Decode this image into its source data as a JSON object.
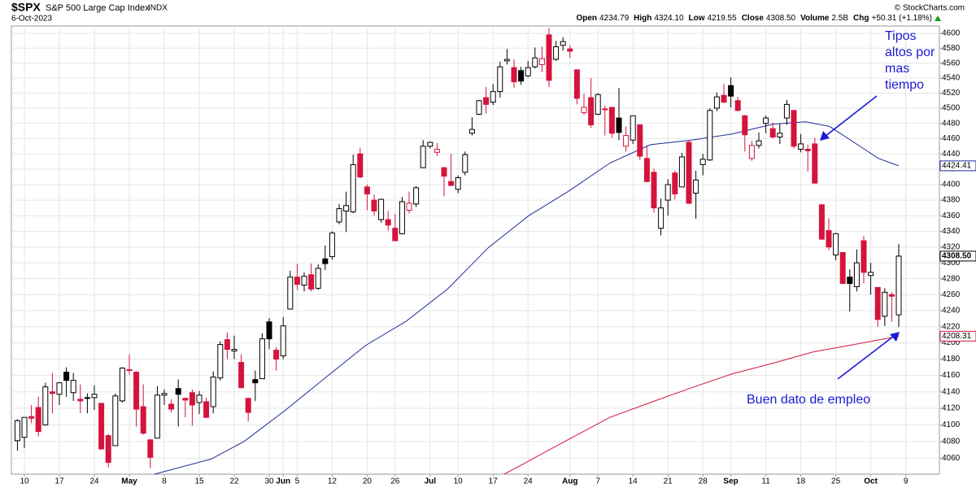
{
  "chart_data": {
    "type": "candlestick",
    "symbol": "$SPX",
    "name": "S&P 500 Large Cap Index",
    "exchange": "INDX",
    "date": "6-Oct-2023",
    "copyright": "© StockCharts.com",
    "stats": [
      {
        "label": "Open",
        "value": "4234.79"
      },
      {
        "label": "High",
        "value": "4324.10"
      },
      {
        "label": "Low",
        "value": "4219.55"
      },
      {
        "label": "Close",
        "value": "4308.50"
      },
      {
        "label": "Volume",
        "value": "2.5B"
      },
      {
        "label": "Chg",
        "value": "+50.31 (+1.18%)"
      }
    ],
    "log_scale": true,
    "grid": true,
    "up_color": "#000000",
    "down_color": "#d4143c",
    "open": [
      4081,
      4085,
      4110,
      4121,
      4100,
      4140,
      4137,
      4164,
      4139,
      4131,
      4132,
      4133,
      4126,
      4087,
      4075,
      4129,
      4166,
      4164,
      4122,
      4082,
      4084,
      4136,
      4125,
      4144,
      4132,
      4139,
      4127,
      4128,
      4122,
      4157,
      4204,
      4190,
      4176,
      4132,
      4155,
      4156,
      4226,
      4191,
      4184,
      4242,
      4282,
      4272,
      4285,
      4268,
      4305,
      4308,
      4352,
      4366,
      4365,
      4440,
      4397,
      4380,
      4355,
      4355,
      4344,
      4337,
      4367,
      4375,
      4422,
      4450,
      4442,
      4422,
      4404,
      4394,
      4416,
      4467,
      4492,
      4514,
      4508,
      4522,
      4563,
      4554,
      4550,
      4543,
      4555,
      4558,
      4598,
      4565,
      4584,
      4579,
      4551,
      4494,
      4514,
      4492,
      4498,
      4501,
      4487,
      4450,
      4458,
      4478,
      4434,
      4416,
      4344,
      4380,
      4415,
      4397,
      4455,
      4389,
      4426,
      4432,
      4500,
      4517,
      4530,
      4510,
      4490,
      4434,
      4451,
      4480,
      4473,
      4462,
      4487,
      4497,
      4446,
      4446,
      4453,
      4374,
      4341,
      4310,
      4313,
      4282,
      4270,
      4328,
      4284,
      4269,
      4233,
      4260,
      4234.79
    ],
    "high": [
      4107,
      4109,
      4124,
      4134,
      4151,
      4163,
      4152,
      4170,
      4163,
      4149,
      4138,
      4148,
      4126,
      4089,
      4138,
      4170,
      4186,
      4165,
      4149,
      4083,
      4147,
      4143,
      4131,
      4155,
      4133,
      4143,
      4141,
      4133,
      4165,
      4202,
      4213,
      4209,
      4186,
      4133,
      4166,
      4212,
      4231,
      4195,
      4232,
      4290,
      4299,
      4288,
      4299,
      4298,
      4322,
      4340,
      4375,
      4391,
      4439,
      4448,
      4400,
      4387,
      4382,
      4366,
      4362,
      4384,
      4391,
      4398,
      4458,
      4456,
      4454,
      4423,
      4440,
      4412,
      4443,
      4488,
      4511,
      4528,
      4532,
      4562,
      4579,
      4565,
      4555,
      4563,
      4581,
      4582,
      4607,
      4590,
      4595,
      4584,
      4551,
      4519,
      4540,
      4520,
      4503,
      4502,
      4527,
      4476,
      4490,
      4479,
      4450,
      4421,
      4382,
      4407,
      4418,
      4441,
      4458,
      4418,
      4440,
      4500,
      4521,
      4532,
      4541,
      4515,
      4491,
      4457,
      4468,
      4490,
      4481,
      4479,
      4511,
      4497,
      4466,
      4452,
      4461,
      4375,
      4357,
      4338,
      4314,
      4292,
      4317,
      4334,
      4300,
      4269,
      4268,
      4263,
      4324.1
    ],
    "low": [
      4069,
      4072,
      4102,
      4086,
      4099,
      4114,
      4124,
      4134,
      4129,
      4114,
      4114,
      4118,
      4072,
      4049,
      4075,
      4127,
      4161,
      4098,
      4088,
      4048,
      4084,
      4124,
      4115,
      4098,
      4109,
      4099,
      4113,
      4109,
      4114,
      4154,
      4180,
      4180,
      4145,
      4104,
      4129,
      4156,
      4192,
      4166,
      4180,
      4242,
      4266,
      4264,
      4264,
      4266,
      4291,
      4304,
      4349,
      4339,
      4363,
      4408,
      4367,
      4360,
      4351,
      4341,
      4328,
      4336,
      4363,
      4371,
      4422,
      4447,
      4437,
      4385,
      4398,
      4389,
      4412,
      4464,
      4491,
      4493,
      4504,
      4514,
      4558,
      4527,
      4531,
      4541,
      4553,
      4548,
      4528,
      4563,
      4577,
      4567,
      4505,
      4491,
      4474,
      4491,
      4464,
      4461,
      4458,
      4443,
      4453,
      4432,
      4403,
      4364,
      4335,
      4360,
      4381,
      4397,
      4375,
      4356,
      4412,
      4431,
      4496,
      4507,
      4501,
      4496,
      4443,
      4431,
      4447,
      4467,
      4460,
      4453,
      4478,
      4447,
      4442,
      4417,
      4401,
      4329,
      4316,
      4303,
      4273,
      4239,
      4264,
      4274,
      4260,
      4220,
      4221,
      4226,
      4219.55
    ],
    "close": [
      4105,
      4109,
      4108,
      4092,
      4146,
      4138,
      4151,
      4154,
      4154,
      4129,
      4133,
      4137,
      4071,
      4055,
      4135,
      4169,
      4167,
      4119,
      4090,
      4061,
      4136,
      4138,
      4119,
      4137,
      4130,
      4124,
      4136,
      4109,
      4158,
      4198,
      4192,
      4192,
      4145,
      4115,
      4151,
      4205,
      4205,
      4180,
      4221,
      4282,
      4273,
      4283,
      4267,
      4293,
      4299,
      4338,
      4369,
      4373,
      4426,
      4410,
      4388,
      4366,
      4381,
      4348,
      4328,
      4378,
      4376,
      4396,
      4450,
      4455,
      4446,
      4411,
      4399,
      4409,
      4439,
      4472,
      4510,
      4505,
      4522,
      4555,
      4565,
      4535,
      4536,
      4554,
      4567,
      4566,
      4537,
      4582,
      4589,
      4576,
      4513,
      4501,
      4478,
      4518,
      4499,
      4467,
      4468,
      4464,
      4490,
      4437,
      4404,
      4370,
      4370,
      4400,
      4388,
      4436,
      4376,
      4406,
      4433,
      4497,
      4515,
      4508,
      4516,
      4497,
      4465,
      4451,
      4457,
      4487,
      4462,
      4467,
      4505,
      4450,
      4453,
      4444,
      4402,
      4330,
      4320,
      4337,
      4274,
      4274,
      4300,
      4288,
      4288,
      4229,
      4263,
      4258,
      4308.5
    ],
    "close_label": "4308.50",
    "series": [
      {
        "color": "#1c2a9c",
        "x": [
          19.6,
          27.7,
          32.4,
          38.2,
          44,
          49.8,
          55.6,
          61.5,
          67.3,
          73.1,
          78.9,
          84.7,
          90.5,
          96.4,
          102.2,
          108,
          112.7,
          116.1,
          119.6,
          123.1,
          126
        ],
        "values": [
          4041,
          4059,
          4080,
          4117,
          4157,
          4197,
          4227,
          4267,
          4319,
          4360,
          4392,
          4428,
          4452,
          4458,
          4466,
          4479,
          4482,
          4476,
          4455,
          4434,
          4424.41
        ]
      },
      {
        "color": "#d4143c",
        "x": [
          69.6,
          78.9,
          84.7,
          90.5,
          96.4,
          102.2,
          108,
          113.8,
          119.6,
          126
        ],
        "values": [
          4041,
          4083,
          4109,
          4127,
          4145,
          4162,
          4175,
          4189,
          4198,
          4208.31
        ]
      }
    ],
    "ylim": [
      4041,
      4610
    ],
    "yticks": [
      4060,
      4080,
      4100,
      4120,
      4140,
      4160,
      4180,
      4200,
      4220,
      4240,
      4260,
      4280,
      4300,
      4320,
      4340,
      4360,
      4380,
      4400,
      4420,
      4440,
      4460,
      4480,
      4500,
      4520,
      4540,
      4560,
      4580,
      4600
    ],
    "xticks": [
      {
        "value": 1,
        "label": "10"
      },
      {
        "value": 6,
        "label": "17"
      },
      {
        "value": 11,
        "label": "24"
      },
      {
        "value": 16,
        "label": "May"
      },
      {
        "value": 21,
        "label": "8"
      },
      {
        "value": 26,
        "label": "15"
      },
      {
        "value": 31,
        "label": "22"
      },
      {
        "value": 36,
        "label": "30"
      },
      {
        "value": 38,
        "label": "Jun"
      },
      {
        "value": 40,
        "label": "5"
      },
      {
        "value": 45,
        "label": "12"
      },
      {
        "value": 50,
        "label": "20"
      },
      {
        "value": 54,
        "label": "26"
      },
      {
        "value": 59,
        "label": "Jul"
      },
      {
        "value": 63,
        "label": "10"
      },
      {
        "value": 68,
        "label": "17"
      },
      {
        "value": 73,
        "label": "24"
      },
      {
        "value": 79,
        "label": "Aug"
      },
      {
        "value": 83,
        "label": "7"
      },
      {
        "value": 88,
        "label": "14"
      },
      {
        "value": 93,
        "label": "21"
      },
      {
        "value": 98,
        "label": "28"
      },
      {
        "value": 102,
        "label": "Sep"
      },
      {
        "value": 107,
        "label": "11"
      },
      {
        "value": 112,
        "label": "18"
      },
      {
        "value": 117,
        "label": "25"
      },
      {
        "value": 122,
        "label": "Oct"
      },
      {
        "value": 127,
        "label": "9"
      }
    ],
    "annotations": [
      {
        "lines": [
          "Tipos",
          "altos por",
          "mas",
          "tiempo"
        ]
      },
      {
        "lines": [
          "Buen dato de empleo"
        ]
      }
    ]
  }
}
